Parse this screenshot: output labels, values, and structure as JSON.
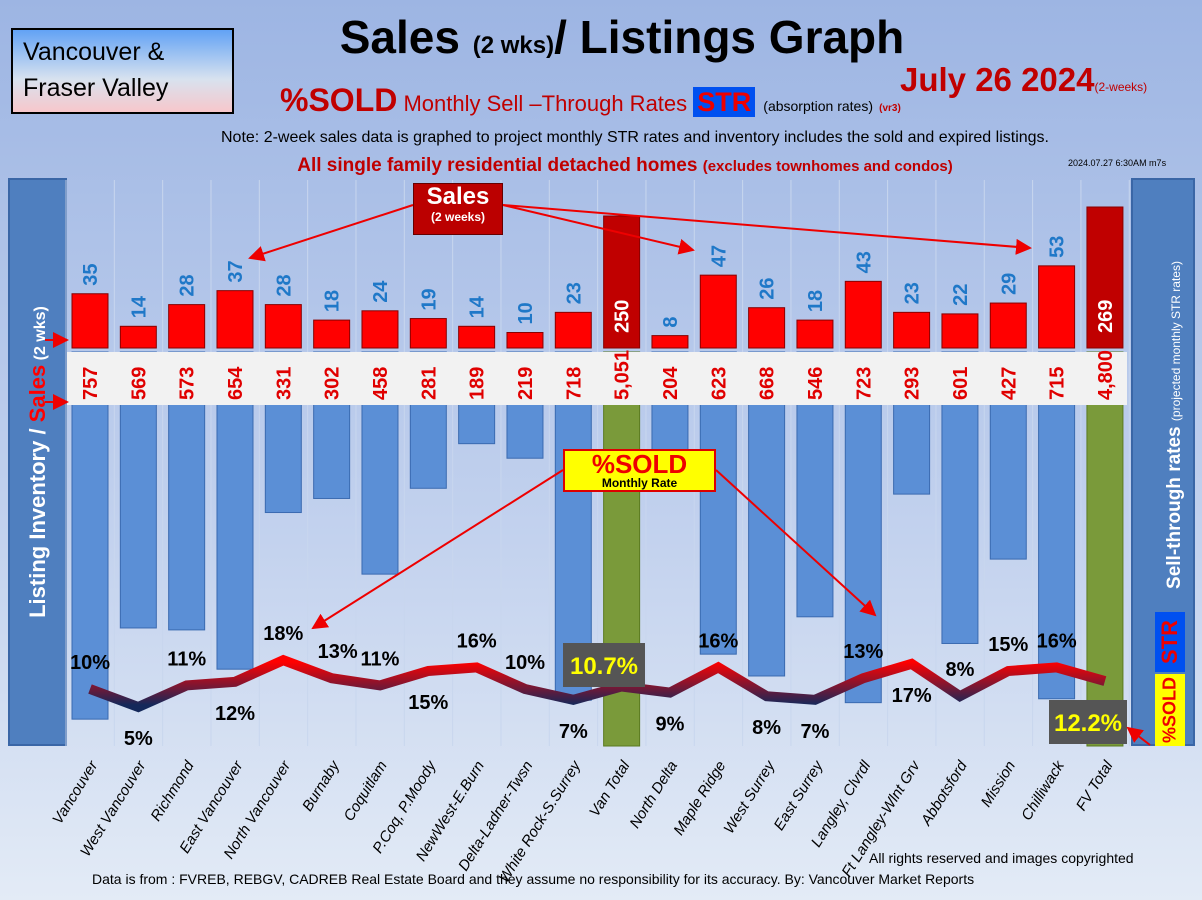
{
  "header": {
    "region": "Vancouver & Fraser Valley",
    "region_line1": "Vancouver &",
    "region_line2": "Fraser Valley",
    "title_a": "Sales ",
    "title_b": "(2 wks)",
    "title_c": "/ Listings Graph",
    "date": "July 26  2024",
    "date_note": "(2-weeks)",
    "sub_sold": "%SOLD",
    "sub_text": " Monthly Sell –Through Rates ",
    "sub_str": "STR",
    "sub_abs": "(absorption rates)",
    "sub_vr": "(vr3)",
    "note": "Note: 2-week sales data is graphed to project monthly STR rates and inventory includes the sold and expired listings.",
    "subtitle": "All single family residential detached homes ",
    "subtitle_small": "(excludes townhomes and condos)",
    "stamp": "2024.07.27 6:30AM m7s"
  },
  "left_axis": {
    "a": "Listing Inventory / ",
    "b": "Sales",
    "c": " (2 wks)"
  },
  "right_axis": {
    "a": "Sell-through rates ",
    "b": "(projected monthly STR rates)",
    "str": "STR",
    "sold": "%SOLD"
  },
  "annotations": {
    "sales": "Sales",
    "sales_sub": "(2 weeks)",
    "sold": "%SOLD",
    "sold_sub": "Monthly Rate"
  },
  "footer": {
    "copyright": "All rights reserved and  images copyrighted",
    "source": "Data is from : FVREB, REBGV, CADREB Real Estate Board and they assume no responsibility for its accuracy. By: Vancouver Market Reports"
  },
  "colors": {
    "sales": "#ff0000",
    "total_sales": "#c00000",
    "inventory": "#5b8fd6",
    "total_inventory": "#7a9a3a",
    "line_high": "#ff0000",
    "line_low": "#14285a"
  },
  "chart_data": {
    "type": "bar",
    "categories": [
      "Vancouver",
      "West Vancouver",
      "Richmond",
      "East Vancouver",
      "North Vancouver",
      "Burnaby",
      "Coquitlam",
      "P.Coq, P.Moody",
      "NewWest-E.Burn",
      "Delta-Ladner-Twsn",
      "White Rock-S.Surrey",
      "Van Total",
      "North Delta",
      "Maple Ridge",
      "West Surrey",
      "East Surrey",
      "Langley, Clvrdl",
      "Ft Langley-Wlnt Grv",
      "Abbotsford",
      "Mission",
      "Chilliwack",
      "FV Total"
    ],
    "series": [
      {
        "name": "Sales (2 weeks)",
        "values": [
          35,
          14,
          28,
          37,
          28,
          18,
          24,
          19,
          14,
          10,
          23,
          250,
          8,
          47,
          26,
          18,
          43,
          23,
          22,
          29,
          53,
          269
        ]
      },
      {
        "name": "Listing Inventory",
        "values": [
          "757",
          "569",
          "573",
          "654",
          "331",
          "302",
          "458",
          "281",
          "189",
          "219",
          "718",
          "5,051",
          "204",
          "623",
          "668",
          "546",
          "723",
          "293",
          "601",
          "427",
          "715",
          "4,800"
        ]
      },
      {
        "name": "%SOLD Monthly STR",
        "values": [
          10,
          5,
          11,
          12,
          18,
          13,
          11,
          15,
          16,
          10,
          7,
          10.7,
          9,
          16,
          8,
          7,
          13,
          17,
          8,
          15,
          16,
          12.2
        ]
      }
    ],
    "str_labels": [
      "10%",
      "5%",
      "11%",
      "12%",
      "18%",
      "13%",
      "11%",
      "15%",
      "16%",
      "10%",
      "7%",
      "10.7%",
      "9%",
      "16%",
      "8%",
      "7%",
      "13%",
      "17%",
      "8%",
      "15%",
      "16%",
      "12.2%"
    ],
    "totals_index": [
      11,
      21
    ]
  }
}
